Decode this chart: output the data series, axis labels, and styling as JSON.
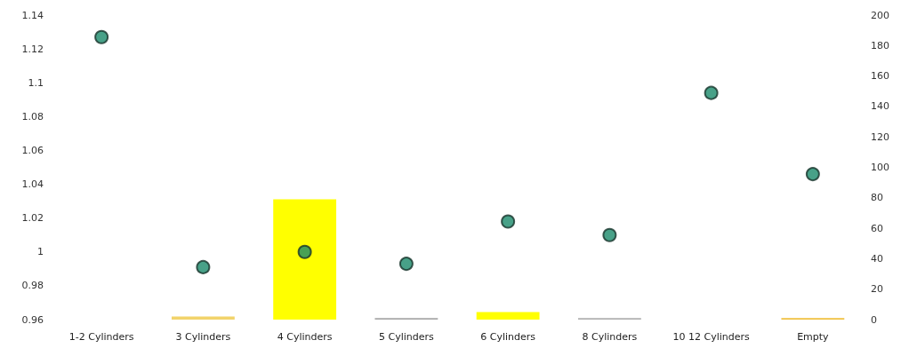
{
  "chart_data": {
    "type": "bar",
    "categories": [
      "1-2 Cylinders",
      "3 Cylinders",
      "4 Cylinders",
      "5 Cylinders",
      "6 Cylinders",
      "8 Cylinders",
      "10 12 Cylinders",
      "Empty"
    ],
    "series": [
      {
        "axis": "y2",
        "colors": [
          "#ffff00",
          "#f2d36b",
          "#ffff00",
          "#a8a8a8",
          "#ffff00",
          "#b0b0b0",
          "#ffff00",
          "#f0c040"
        ],
        "values": [
          0,
          2,
          79,
          1,
          5,
          1,
          0,
          1
        ]
      },
      {
        "type": "scatter",
        "color": "#1a8a6a",
        "values": [
          1.127,
          0.991,
          1.0,
          0.993,
          1.018,
          1.01,
          1.094,
          1.046
        ]
      }
    ],
    "marker": "circle",
    "ylim": [
      0.96,
      1.14
    ],
    "yticks": [
      0.96,
      0.98,
      1,
      1.02,
      1.04,
      1.06,
      1.08,
      1.1,
      1.12,
      1.14
    ],
    "y2lim": [
      0,
      200
    ],
    "y2ticks": [
      0,
      20,
      40,
      60,
      80,
      100,
      120,
      140,
      160,
      180,
      200
    ]
  }
}
